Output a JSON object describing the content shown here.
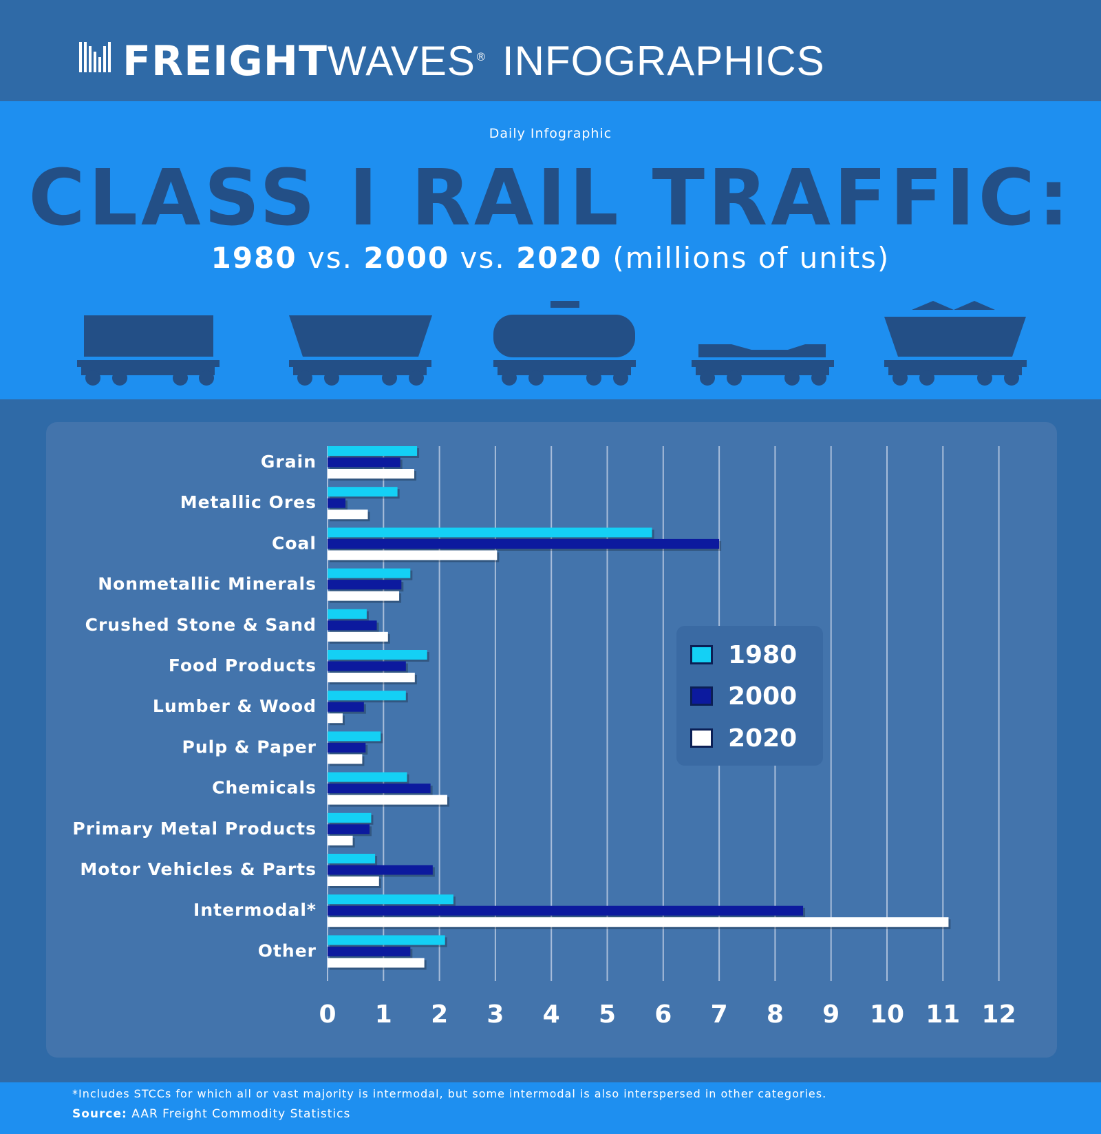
{
  "header": {
    "brand_bold": "FREIGHT",
    "brand_light": "WAVES",
    "brand_mark": "®",
    "brand_suffix": "INFOGRAPHICS"
  },
  "hero": {
    "kicker": "Daily Infographic",
    "title": "CLASS I RAIL TRAFFIC:",
    "subtitle_parts": [
      "1980",
      " vs. ",
      "2000",
      " vs. ",
      "2020",
      " (millions of units)"
    ]
  },
  "footer": {
    "note": "*Includes STCCs for which all or vast majority is intermodal, but some intermodal is also interspersed in other categories.",
    "source_label": "Source:",
    "source_text": " AAR Freight Commodity Statistics"
  },
  "colors": {
    "y1980": "#14d0f5",
    "y2000": "#0c1a9e",
    "y2020": "#ffffff",
    "panel": "#4374ac",
    "gridline": "#c9d6ea"
  },
  "chart_data": {
    "type": "bar",
    "orientation": "horizontal",
    "categories": [
      "Grain",
      "Metallic Ores",
      "Coal",
      "Nonmetallic Minerals",
      "Crushed Stone & Sand",
      "Food Products",
      "Lumber & Wood",
      "Pulp & Paper",
      "Chemicals",
      "Primary Metal Products",
      "Motor Vehicles & Parts",
      "Intermodal*",
      "Other"
    ],
    "series": [
      {
        "name": "1980",
        "values": [
          1.6,
          1.25,
          5.8,
          1.48,
          0.7,
          1.78,
          1.4,
          0.95,
          1.42,
          0.78,
          0.85,
          2.25,
          2.1
        ]
      },
      {
        "name": "2000",
        "values": [
          1.3,
          0.32,
          7.0,
          1.32,
          0.88,
          1.4,
          0.65,
          0.68,
          1.84,
          0.75,
          1.88,
          8.5,
          1.48
        ]
      },
      {
        "name": "2020",
        "values": [
          1.55,
          0.72,
          3.03,
          1.28,
          1.08,
          1.56,
          0.27,
          0.62,
          2.14,
          0.45,
          0.92,
          11.1,
          1.73
        ]
      }
    ],
    "xlim": [
      0,
      12
    ],
    "xticks": [
      "0",
      "1",
      "2",
      "3",
      "4",
      "5",
      "6",
      "7",
      "8",
      "9",
      "10",
      "11",
      "12"
    ],
    "grid": true,
    "legend_position": "center-right"
  }
}
